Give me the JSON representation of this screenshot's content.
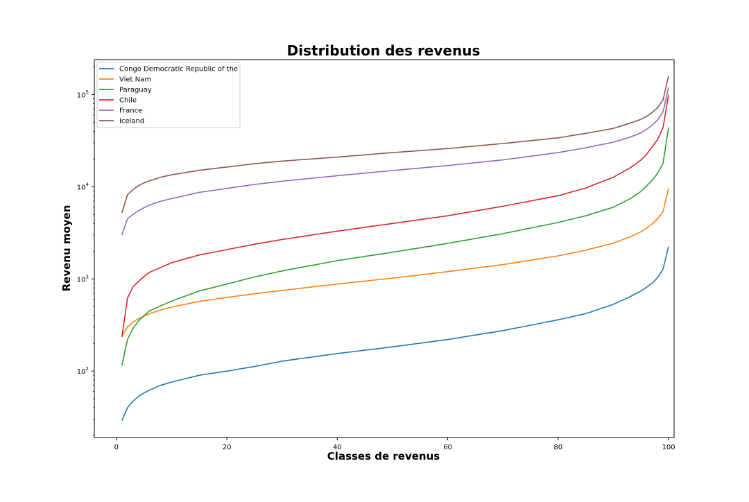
{
  "chart_data": {
    "type": "line",
    "title": "Distribution des revenus",
    "xlabel": "Classes de revenus",
    "ylabel": "Revenu moyen",
    "yscale": "log",
    "xlim": [
      -4,
      101
    ],
    "ylim": [
      19,
      240000
    ],
    "xticks": [
      0,
      20,
      40,
      60,
      80,
      100
    ],
    "yticks": [
      {
        "value": 100,
        "base": "10",
        "exp": "2"
      },
      {
        "value": 1000,
        "base": "10",
        "exp": "3"
      },
      {
        "value": 10000,
        "base": "10",
        "exp": "4"
      },
      {
        "value": 100000,
        "base": "10",
        "exp": "5"
      }
    ],
    "grid": false,
    "legend_position": "top-left",
    "anchors": {
      "x": [
        1,
        2,
        3,
        4,
        5,
        6,
        8,
        10,
        15,
        20,
        25,
        30,
        40,
        50,
        60,
        70,
        80,
        85,
        90,
        93,
        95,
        96,
        97,
        98,
        99,
        100
      ],
      "series": [
        {
          "name": "Congo Democratic Republic of the",
          "color": "#1f77b4",
          "values": [
            29,
            40,
            47,
            53,
            58,
            62,
            70,
            76,
            90,
            100,
            112,
            128,
            155,
            183,
            220,
            275,
            360,
            420,
            530,
            640,
            740,
            810,
            900,
            1030,
            1280,
            2250
          ]
        },
        {
          "name": "Viet Nam",
          "color": "#ff7f0e",
          "values": [
            240,
            300,
            340,
            370,
            395,
            420,
            460,
            495,
            570,
            630,
            690,
            750,
            880,
            1020,
            1200,
            1430,
            1780,
            2050,
            2450,
            2850,
            3250,
            3550,
            3950,
            4500,
            5400,
            9600
          ]
        },
        {
          "name": "Paraguay",
          "color": "#2ca02c",
          "values": [
            115,
            220,
            290,
            350,
            400,
            450,
            510,
            575,
            740,
            880,
            1050,
            1220,
            1580,
            1950,
            2430,
            3100,
            4100,
            4850,
            6000,
            7400,
            8900,
            10200,
            11700,
            14000,
            18000,
            44000
          ]
        },
        {
          "name": "Chile",
          "color": "#d62728",
          "values": [
            235,
            620,
            820,
            940,
            1060,
            1180,
            1330,
            1500,
            1820,
            2080,
            2380,
            2680,
            3300,
            4000,
            4850,
            6150,
            8000,
            9700,
            12700,
            16000,
            19500,
            22500,
            27000,
            32500,
            44000,
            100000
          ]
        },
        {
          "name": "France",
          "color": "#9467bd",
          "values": [
            3000,
            4500,
            5000,
            5500,
            5950,
            6350,
            6950,
            7450,
            8700,
            9600,
            10600,
            11500,
            13200,
            15000,
            17000,
            19600,
            23500,
            26500,
            30500,
            34500,
            38500,
            42000,
            46500,
            53000,
            65000,
            120000
          ]
        },
        {
          "name": "Iceland",
          "color": "#8c564b",
          "values": [
            5200,
            8200,
            9300,
            10300,
            11000,
            11600,
            12700,
            13500,
            15100,
            16400,
            17800,
            19000,
            21000,
            23500,
            26000,
            29500,
            34000,
            38000,
            43000,
            49000,
            54000,
            58000,
            64000,
            72000,
            88000,
            160000
          ]
        }
      ]
    }
  }
}
